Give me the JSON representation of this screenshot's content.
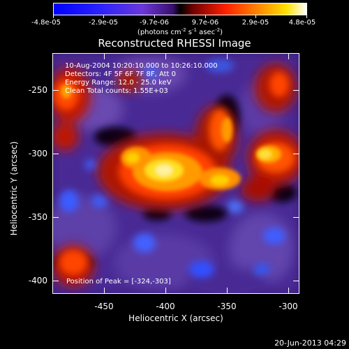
{
  "colorbar": {
    "labels": [
      "-4.8e-05",
      "-2.9e-05",
      "-9.7e-06",
      "9.7e-06",
      "2.9e-05",
      "4.8e-05"
    ],
    "units_main": "(photons cm",
    "units_exp1": "-2",
    "units_mid": " s",
    "units_exp2": "-1",
    "units_mid2": " asec",
    "units_exp3": "-2",
    "units_end": ")"
  },
  "image": {
    "title": "Reconstructed RHESSI Image",
    "info_lines": [
      "10-Aug-2004 10:20:10.000 to 10:26:10.000",
      "Detectors: 4F 5F 6F 7F 8F, Att 0",
      "Energy Range: 12.0 - 25.0 keV",
      "Clean     Total counts: 1.55E+03"
    ],
    "peak_text": "Position of Peak = [-324,-303]"
  },
  "axes": {
    "xlabel": "Heliocentric X (arcsec)",
    "ylabel": "Heliocentric Y (arcsec)",
    "x_ticks": [
      "-450",
      "-400",
      "-350",
      "-300"
    ],
    "y_ticks": [
      "-250",
      "-300",
      "-350",
      "-400"
    ]
  },
  "timestamp": "20-Jun-2013 04:29"
}
